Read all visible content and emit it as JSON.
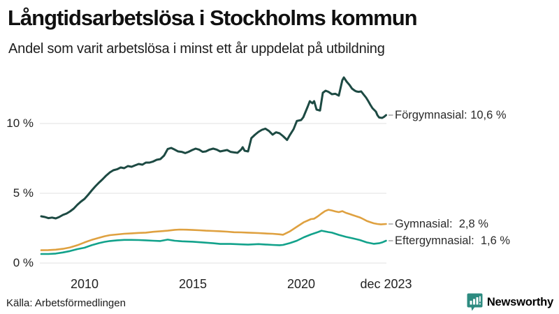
{
  "header": {
    "title": "Långtidsarbetslösa i Stockholms kommun",
    "subtitle": "Andel som varit arbetslösa i minst ett år uppdelat på utbildning"
  },
  "footer": {
    "source": "Källa: Arbetsförmedlingen",
    "brand": "Newsworthy",
    "brand_color": "#2d8b80"
  },
  "chart_data": {
    "type": "line",
    "title": "Långtidsarbetslösa i Stockholms kommun",
    "subtitle": "Andel som varit arbetslösa i minst ett år uppdelat på utbildning",
    "xlabel": "",
    "ylabel": "",
    "x_range": [
      2008.0,
      2023.92
    ],
    "ylim": [
      0,
      13.5
    ],
    "grid": "horizontal",
    "legend_position": "right-end-labels",
    "grid_color": "#e2e2e2",
    "connector_color": "#9e9e9e",
    "x_ticks": [
      {
        "label": "2010",
        "year": 2010
      },
      {
        "label": "2015",
        "year": 2015
      },
      {
        "label": "2020",
        "year": 2020
      },
      {
        "label": "dec 2023",
        "year": 2023.92
      }
    ],
    "y_ticks": [
      {
        "label": "0 %",
        "value": 0
      },
      {
        "label": "5 %",
        "value": 5
      },
      {
        "label": "10 %",
        "value": 10
      }
    ],
    "series": [
      {
        "name": "Förgymnasial",
        "color": "#1d4a43",
        "stroke_width": 3,
        "end_value_label": "10,6 %",
        "end_label": "Förgymnasial: 10,6 %",
        "points": [
          [
            2008.0,
            3.35
          ],
          [
            2008.17,
            3.3
          ],
          [
            2008.33,
            3.22
          ],
          [
            2008.5,
            3.26
          ],
          [
            2008.67,
            3.2
          ],
          [
            2008.83,
            3.3
          ],
          [
            2009.0,
            3.45
          ],
          [
            2009.17,
            3.55
          ],
          [
            2009.33,
            3.7
          ],
          [
            2009.5,
            3.9
          ],
          [
            2009.67,
            4.18
          ],
          [
            2009.83,
            4.4
          ],
          [
            2010.0,
            4.6
          ],
          [
            2010.17,
            4.9
          ],
          [
            2010.33,
            5.2
          ],
          [
            2010.5,
            5.5
          ],
          [
            2010.67,
            5.77
          ],
          [
            2010.83,
            6.0
          ],
          [
            2011.0,
            6.27
          ],
          [
            2011.17,
            6.5
          ],
          [
            2011.33,
            6.65
          ],
          [
            2011.5,
            6.72
          ],
          [
            2011.67,
            6.85
          ],
          [
            2011.83,
            6.8
          ],
          [
            2012.0,
            6.95
          ],
          [
            2012.17,
            6.9
          ],
          [
            2012.33,
            7.0
          ],
          [
            2012.5,
            7.1
          ],
          [
            2012.67,
            7.05
          ],
          [
            2012.83,
            7.2
          ],
          [
            2013.0,
            7.2
          ],
          [
            2013.17,
            7.28
          ],
          [
            2013.33,
            7.4
          ],
          [
            2013.5,
            7.45
          ],
          [
            2013.67,
            7.7
          ],
          [
            2013.84,
            8.17
          ],
          [
            2014.0,
            8.25
          ],
          [
            2014.16,
            8.13
          ],
          [
            2014.32,
            8.0
          ],
          [
            2014.48,
            7.97
          ],
          [
            2014.65,
            7.88
          ],
          [
            2014.8,
            7.97
          ],
          [
            2014.97,
            8.1
          ],
          [
            2015.13,
            8.2
          ],
          [
            2015.3,
            8.12
          ],
          [
            2015.45,
            7.97
          ],
          [
            2015.6,
            8.0
          ],
          [
            2015.77,
            8.13
          ],
          [
            2015.94,
            8.2
          ],
          [
            2016.1,
            8.13
          ],
          [
            2016.26,
            8.0
          ],
          [
            2016.42,
            8.05
          ],
          [
            2016.58,
            8.1
          ],
          [
            2016.74,
            7.97
          ],
          [
            2016.9,
            7.93
          ],
          [
            2017.06,
            7.9
          ],
          [
            2017.23,
            8.13
          ],
          [
            2017.3,
            8.3
          ],
          [
            2017.39,
            8.05
          ],
          [
            2017.55,
            8.0
          ],
          [
            2017.7,
            8.95
          ],
          [
            2017.87,
            9.2
          ],
          [
            2018.03,
            9.4
          ],
          [
            2018.19,
            9.55
          ],
          [
            2018.35,
            9.63
          ],
          [
            2018.51,
            9.47
          ],
          [
            2018.68,
            9.2
          ],
          [
            2018.84,
            9.37
          ],
          [
            2019.0,
            9.3
          ],
          [
            2019.16,
            9.1
          ],
          [
            2019.35,
            8.82
          ],
          [
            2019.48,
            9.18
          ],
          [
            2019.65,
            9.6
          ],
          [
            2019.8,
            10.18
          ],
          [
            2020.0,
            10.25
          ],
          [
            2020.1,
            10.45
          ],
          [
            2020.3,
            11.2
          ],
          [
            2020.4,
            11.6
          ],
          [
            2020.52,
            11.45
          ],
          [
            2020.6,
            11.6
          ],
          [
            2020.71,
            11.0
          ],
          [
            2020.87,
            10.93
          ],
          [
            2021.0,
            12.2
          ],
          [
            2021.13,
            12.35
          ],
          [
            2021.26,
            12.27
          ],
          [
            2021.42,
            12.1
          ],
          [
            2021.58,
            12.13
          ],
          [
            2021.74,
            12.0
          ],
          [
            2021.9,
            13.1
          ],
          [
            2021.97,
            13.3
          ],
          [
            2022.1,
            13.0
          ],
          [
            2022.23,
            12.77
          ],
          [
            2022.35,
            12.5
          ],
          [
            2022.48,
            12.35
          ],
          [
            2022.55,
            12.3
          ],
          [
            2022.65,
            12.27
          ],
          [
            2022.77,
            12.3
          ],
          [
            2022.87,
            12.1
          ],
          [
            2023.0,
            11.85
          ],
          [
            2023.1,
            11.6
          ],
          [
            2023.19,
            11.35
          ],
          [
            2023.29,
            11.1
          ],
          [
            2023.45,
            10.85
          ],
          [
            2023.52,
            10.6
          ],
          [
            2023.6,
            10.43
          ],
          [
            2023.74,
            10.4
          ],
          [
            2023.82,
            10.47
          ],
          [
            2023.92,
            10.6
          ]
        ]
      },
      {
        "name": "Gymnasial",
        "color": "#dfa140",
        "stroke_width": 2.6,
        "end_value_label": "2,8 %",
        "end_label": "Gymnasial:  2,8 %",
        "points": [
          [
            2008.0,
            0.92
          ],
          [
            2008.33,
            0.93
          ],
          [
            2008.67,
            0.96
          ],
          [
            2009.0,
            1.02
          ],
          [
            2009.33,
            1.12
          ],
          [
            2009.67,
            1.28
          ],
          [
            2010.0,
            1.48
          ],
          [
            2010.33,
            1.66
          ],
          [
            2010.67,
            1.81
          ],
          [
            2010.92,
            1.92
          ],
          [
            2011.17,
            2.0
          ],
          [
            2011.5,
            2.05
          ],
          [
            2011.83,
            2.1
          ],
          [
            2012.17,
            2.13
          ],
          [
            2012.5,
            2.16
          ],
          [
            2012.83,
            2.18
          ],
          [
            2013.17,
            2.24
          ],
          [
            2013.5,
            2.28
          ],
          [
            2013.84,
            2.32
          ],
          [
            2014.16,
            2.38
          ],
          [
            2014.4,
            2.4
          ],
          [
            2014.71,
            2.39
          ],
          [
            2015.0,
            2.37
          ],
          [
            2015.3,
            2.35
          ],
          [
            2015.6,
            2.32
          ],
          [
            2015.94,
            2.3
          ],
          [
            2016.26,
            2.28
          ],
          [
            2016.58,
            2.25
          ],
          [
            2016.9,
            2.21
          ],
          [
            2017.23,
            2.2
          ],
          [
            2017.55,
            2.18
          ],
          [
            2018.03,
            2.15
          ],
          [
            2018.35,
            2.12
          ],
          [
            2018.68,
            2.1
          ],
          [
            2019.0,
            2.06
          ],
          [
            2019.16,
            2.03
          ],
          [
            2019.48,
            2.27
          ],
          [
            2019.8,
            2.6
          ],
          [
            2020.13,
            2.93
          ],
          [
            2020.45,
            3.15
          ],
          [
            2020.6,
            3.18
          ],
          [
            2020.77,
            3.35
          ],
          [
            2020.94,
            3.55
          ],
          [
            2021.1,
            3.72
          ],
          [
            2021.26,
            3.82
          ],
          [
            2021.42,
            3.77
          ],
          [
            2021.58,
            3.7
          ],
          [
            2021.74,
            3.65
          ],
          [
            2021.9,
            3.72
          ],
          [
            2022.06,
            3.6
          ],
          [
            2022.23,
            3.52
          ],
          [
            2022.39,
            3.43
          ],
          [
            2022.55,
            3.35
          ],
          [
            2022.71,
            3.27
          ],
          [
            2022.87,
            3.15
          ],
          [
            2023.03,
            3.02
          ],
          [
            2023.19,
            2.93
          ],
          [
            2023.35,
            2.85
          ],
          [
            2023.52,
            2.8
          ],
          [
            2023.68,
            2.77
          ],
          [
            2023.92,
            2.8
          ]
        ]
      },
      {
        "name": "Eftergymnasial",
        "color": "#12a28b",
        "stroke_width": 2.6,
        "end_value_label": "1,6 %",
        "end_label": "Eftergymnasial:  1,6 %",
        "points": [
          [
            2008.0,
            0.65
          ],
          [
            2008.33,
            0.65
          ],
          [
            2008.67,
            0.68
          ],
          [
            2009.0,
            0.76
          ],
          [
            2009.33,
            0.86
          ],
          [
            2009.67,
            1.0
          ],
          [
            2010.0,
            1.1
          ],
          [
            2010.33,
            1.28
          ],
          [
            2010.67,
            1.43
          ],
          [
            2010.92,
            1.52
          ],
          [
            2011.17,
            1.58
          ],
          [
            2011.5,
            1.63
          ],
          [
            2011.83,
            1.66
          ],
          [
            2012.17,
            1.66
          ],
          [
            2012.5,
            1.65
          ],
          [
            2012.83,
            1.63
          ],
          [
            2013.17,
            1.6
          ],
          [
            2013.5,
            1.58
          ],
          [
            2013.84,
            1.68
          ],
          [
            2014.16,
            1.6
          ],
          [
            2014.5,
            1.56
          ],
          [
            2015.0,
            1.53
          ],
          [
            2015.45,
            1.48
          ],
          [
            2015.94,
            1.42
          ],
          [
            2016.26,
            1.37
          ],
          [
            2016.74,
            1.37
          ],
          [
            2017.23,
            1.34
          ],
          [
            2017.55,
            1.32
          ],
          [
            2018.03,
            1.36
          ],
          [
            2018.35,
            1.33
          ],
          [
            2018.68,
            1.3
          ],
          [
            2019.0,
            1.28
          ],
          [
            2019.16,
            1.3
          ],
          [
            2019.48,
            1.43
          ],
          [
            2019.8,
            1.6
          ],
          [
            2020.13,
            1.85
          ],
          [
            2020.45,
            2.05
          ],
          [
            2020.77,
            2.22
          ],
          [
            2020.94,
            2.32
          ],
          [
            2021.1,
            2.27
          ],
          [
            2021.26,
            2.22
          ],
          [
            2021.42,
            2.18
          ],
          [
            2021.74,
            2.02
          ],
          [
            2022.06,
            1.88
          ],
          [
            2022.39,
            1.77
          ],
          [
            2022.71,
            1.65
          ],
          [
            2023.03,
            1.48
          ],
          [
            2023.35,
            1.38
          ],
          [
            2023.6,
            1.42
          ],
          [
            2023.74,
            1.48
          ],
          [
            2023.92,
            1.6
          ]
        ]
      }
    ]
  }
}
